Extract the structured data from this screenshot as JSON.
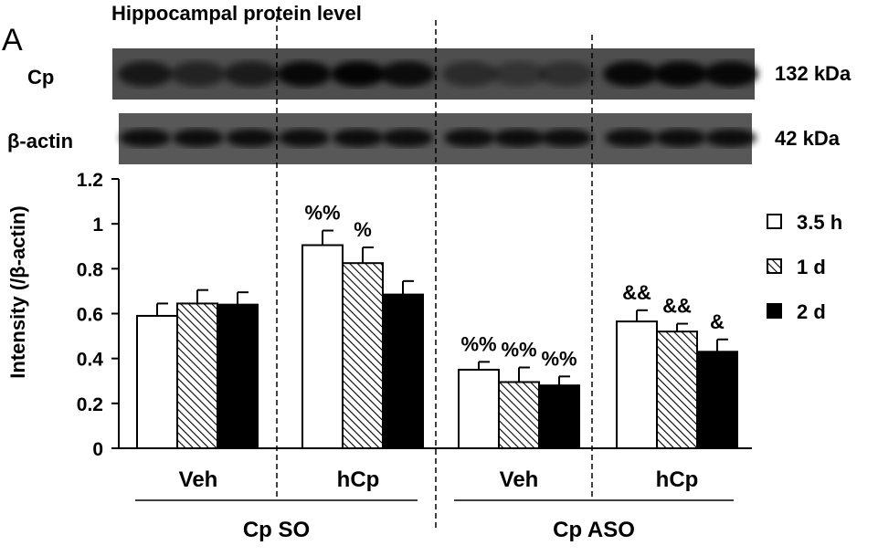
{
  "panel_label": "A",
  "title": "Hippocampal protein level",
  "blots": [
    {
      "name": "Cp",
      "size": "132 kDa"
    },
    {
      "name": "β-actin",
      "size": "42 kDa"
    }
  ],
  "chart_data": {
    "type": "bar",
    "ylabel": "Intensity (/β-actin)",
    "ylim": [
      0,
      1.2
    ],
    "yticks": [
      "0",
      "0.2",
      "0.4",
      "0.6",
      "0.8",
      "1",
      "1.2"
    ],
    "groups": [
      {
        "label": "Veh",
        "parent": "Cp SO"
      },
      {
        "label": "hCp",
        "parent": "Cp SO"
      },
      {
        "label": "Veh",
        "parent": "Cp ASO"
      },
      {
        "label": "hCp",
        "parent": "Cp ASO"
      }
    ],
    "parents": [
      "Cp SO",
      "Cp ASO"
    ],
    "series": [
      {
        "name": "3.5 h",
        "fill": "white",
        "values": [
          0.59,
          0.905,
          0.35,
          0.565
        ],
        "errors": [
          0.055,
          0.065,
          0.035,
          0.05
        ],
        "annotations": [
          "",
          "%%",
          "%%",
          "&&"
        ]
      },
      {
        "name": "1 d",
        "fill": "hatch",
        "values": [
          0.645,
          0.825,
          0.295,
          0.52
        ],
        "errors": [
          0.06,
          0.07,
          0.065,
          0.035
        ],
        "annotations": [
          "",
          "%",
          "%%",
          "&&"
        ]
      },
      {
        "name": "2 d",
        "fill": "black",
        "values": [
          0.64,
          0.685,
          0.28,
          0.43
        ],
        "errors": [
          0.055,
          0.06,
          0.04,
          0.055
        ],
        "annotations": [
          "",
          "",
          "%%",
          "&"
        ]
      }
    ],
    "legend_position": "right",
    "grid": false,
    "colors": {
      "white": "#ffffff",
      "black": "#000000",
      "outline": "#000000"
    }
  }
}
